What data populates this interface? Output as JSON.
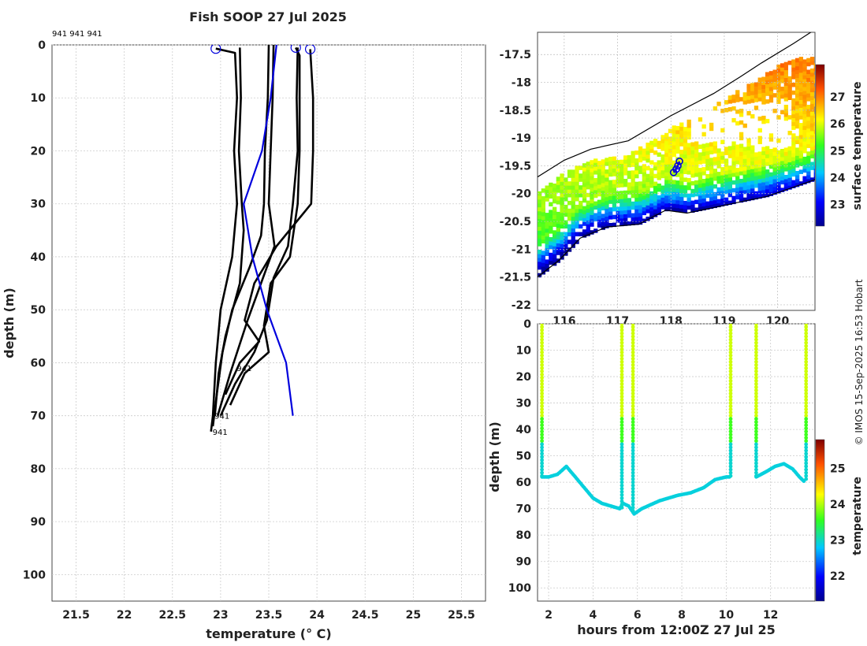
{
  "page": {
    "title": "Fish SOOP 27 Jul 2025",
    "watermark": "© IMOS 15-Sep-2025 16:53 Hobart"
  },
  "chart_data": [
    {
      "type": "line",
      "name": "temperature-profile",
      "xlabel": "temperature (° C)",
      "ylabel": "depth (m)",
      "xlim": [
        21.25,
        25.75
      ],
      "ylim": [
        0,
        105
      ],
      "x_ticks": [
        "21.5",
        "22",
        "22.5",
        "23",
        "23.5",
        "24",
        "24.5",
        "25",
        "25.5"
      ],
      "y_ticks": [
        "0",
        "10",
        "20",
        "30",
        "40",
        "50",
        "60",
        "70",
        "80",
        "90",
        "100"
      ],
      "top_annotation": "941 941 941",
      "profile_labels": [
        {
          "text": "941",
          "temp": 23.15,
          "depth": 61
        },
        {
          "text": "941",
          "temp": 22.92,
          "depth": 70
        },
        {
          "text": "941",
          "temp": 22.9,
          "depth": 73
        }
      ],
      "start_markers": [
        {
          "temp": 22.95,
          "depth": 0.7
        },
        {
          "temp": 23.78,
          "depth": 0.5
        },
        {
          "temp": 23.93,
          "depth": 0.8
        }
      ],
      "climatology": {
        "color": "#0000dd",
        "points": [
          [
            23.58,
            0
          ],
          [
            23.52,
            10
          ],
          [
            23.43,
            20
          ],
          [
            23.24,
            30
          ],
          [
            23.33,
            40
          ],
          [
            23.48,
            50
          ],
          [
            23.68,
            60
          ],
          [
            23.75,
            70
          ]
        ]
      },
      "profiles": [
        [
          [
            22.95,
            0.7
          ],
          [
            23.15,
            1.5
          ],
          [
            23.17,
            10
          ],
          [
            23.14,
            20
          ],
          [
            23.17,
            30
          ],
          [
            23.12,
            40
          ],
          [
            23.0,
            50
          ],
          [
            22.95,
            60
          ],
          [
            22.92,
            70
          ],
          [
            22.9,
            73
          ]
        ],
        [
          [
            23.2,
            0.5
          ],
          [
            23.21,
            10
          ],
          [
            23.19,
            20
          ],
          [
            23.22,
            30
          ],
          [
            23.24,
            35
          ],
          [
            23.2,
            45
          ],
          [
            23.05,
            55
          ],
          [
            22.98,
            62
          ],
          [
            22.94,
            70
          ]
        ],
        [
          [
            23.5,
            0
          ],
          [
            23.49,
            10
          ],
          [
            23.46,
            20
          ],
          [
            23.45,
            30
          ],
          [
            23.42,
            36
          ],
          [
            23.3,
            42
          ],
          [
            23.12,
            50
          ],
          [
            23.02,
            58
          ],
          [
            22.96,
            66
          ],
          [
            22.92,
            72
          ]
        ],
        [
          [
            23.55,
            0
          ],
          [
            23.54,
            10
          ],
          [
            23.52,
            20
          ],
          [
            23.5,
            30
          ],
          [
            23.56,
            38
          ],
          [
            23.42,
            45
          ],
          [
            23.28,
            52
          ],
          [
            23.1,
            62
          ],
          [
            22.97,
            70
          ]
        ],
        [
          [
            23.8,
            0.5
          ],
          [
            23.79,
            10
          ],
          [
            23.8,
            20
          ],
          [
            23.75,
            30
          ],
          [
            23.7,
            38
          ],
          [
            23.55,
            44
          ],
          [
            23.48,
            52
          ],
          [
            23.35,
            58
          ],
          [
            23.15,
            64
          ],
          [
            23.0,
            70
          ]
        ],
        [
          [
            23.78,
            0.5
          ],
          [
            23.82,
            2
          ],
          [
            23.82,
            20
          ],
          [
            23.8,
            30
          ],
          [
            23.72,
            40
          ],
          [
            23.52,
            45
          ],
          [
            23.45,
            53
          ],
          [
            23.5,
            58
          ],
          [
            23.25,
            62
          ],
          [
            23.1,
            68
          ]
        ],
        [
          [
            23.93,
            0.8
          ],
          [
            23.96,
            10
          ],
          [
            23.96,
            20
          ],
          [
            23.94,
            30
          ],
          [
            23.58,
            38
          ],
          [
            23.45,
            42
          ],
          [
            23.35,
            45
          ],
          [
            23.25,
            52
          ],
          [
            23.4,
            56
          ],
          [
            23.2,
            60
          ],
          [
            23.05,
            66
          ]
        ]
      ]
    },
    {
      "type": "heatmap",
      "name": "surface-temperature-map",
      "x_ticks": [
        "116",
        "117",
        "118",
        "119",
        "120"
      ],
      "y_ticks": [
        "-17.5",
        "-18",
        "-18.5",
        "-19",
        "-19.5",
        "-20",
        "-20.5",
        "-21",
        "-21.5",
        "-22"
      ],
      "xlim": [
        115.5,
        120.7
      ],
      "ylim": [
        -22.1,
        -17.1
      ],
      "colorbar_label": "surface temperature",
      "colorbar_ticks": [
        "23",
        "24",
        "25",
        "26",
        "27"
      ],
      "colorbar_range": [
        22.2,
        28.2
      ],
      "track": [
        [
          118.05,
          -19.62
        ],
        [
          118.1,
          -19.56
        ],
        [
          118.13,
          -19.5
        ],
        [
          118.16,
          -19.42
        ]
      ],
      "coast": [
        [
          115.5,
          -19.7
        ],
        [
          116.0,
          -19.4
        ],
        [
          116.5,
          -19.2
        ],
        [
          117.2,
          -19.05
        ],
        [
          118.0,
          -18.6
        ],
        [
          118.8,
          -18.2
        ],
        [
          119.3,
          -17.9
        ],
        [
          119.7,
          -17.65
        ],
        [
          120.3,
          -17.3
        ],
        [
          120.7,
          -17.05
        ]
      ],
      "coast2": [
        [
          115.5,
          -21.5
        ],
        [
          115.9,
          -21.2
        ],
        [
          116.3,
          -20.8
        ],
        [
          116.8,
          -20.6
        ],
        [
          117.4,
          -20.55
        ],
        [
          117.9,
          -20.3
        ],
        [
          118.3,
          -20.35
        ],
        [
          118.8,
          -20.25
        ],
        [
          119.3,
          -20.15
        ],
        [
          119.8,
          -20.05
        ],
        [
          120.4,
          -19.85
        ],
        [
          120.7,
          -19.75
        ]
      ]
    },
    {
      "type": "scatter",
      "name": "depth-time-section",
      "xlabel": "hours from 12:00Z 27 Jul 25",
      "ylabel": "depth (m)",
      "xlim": [
        1.5,
        14.0
      ],
      "ylim": [
        0,
        105
      ],
      "x_ticks": [
        "2",
        "4",
        "6",
        "8",
        "10",
        "12"
      ],
      "y_ticks": [
        "0",
        "10",
        "20",
        "30",
        "40",
        "50",
        "60",
        "70",
        "80",
        "90",
        "100"
      ],
      "colorbar_label": "temperature",
      "colorbar_ticks": [
        "22",
        "23",
        "24",
        "25"
      ],
      "colorbar_range": [
        21.3,
        25.8
      ],
      "bottom_trace": [
        [
          1.7,
          58
        ],
        [
          2.0,
          58
        ],
        [
          2.4,
          57
        ],
        [
          2.8,
          54
        ],
        [
          3.2,
          58
        ],
        [
          3.6,
          62
        ],
        [
          4.0,
          66
        ],
        [
          4.4,
          68
        ],
        [
          4.8,
          69
        ],
        [
          5.2,
          70
        ],
        [
          5.35,
          68
        ],
        [
          5.6,
          69
        ],
        [
          5.85,
          72
        ],
        [
          6.2,
          70
        ],
        [
          7.0,
          67
        ],
        [
          7.8,
          65
        ],
        [
          8.4,
          64
        ],
        [
          9.0,
          62
        ],
        [
          9.5,
          59
        ],
        [
          10.0,
          58
        ],
        [
          10.2,
          58
        ]
      ],
      "bottom_trace2": [
        [
          11.35,
          58
        ],
        [
          11.8,
          56
        ],
        [
          12.2,
          54
        ],
        [
          12.6,
          53
        ],
        [
          13.0,
          55
        ],
        [
          13.3,
          58
        ],
        [
          13.55,
          60
        ]
      ],
      "casts": [
        {
          "hour": 1.7,
          "bottom": 58
        },
        {
          "hour": 5.3,
          "bottom": 70
        },
        {
          "hour": 5.8,
          "bottom": 72
        },
        {
          "hour": 10.2,
          "bottom": 58
        },
        {
          "hour": 11.35,
          "bottom": 58
        },
        {
          "hour": 13.6,
          "bottom": 60
        }
      ]
    }
  ]
}
